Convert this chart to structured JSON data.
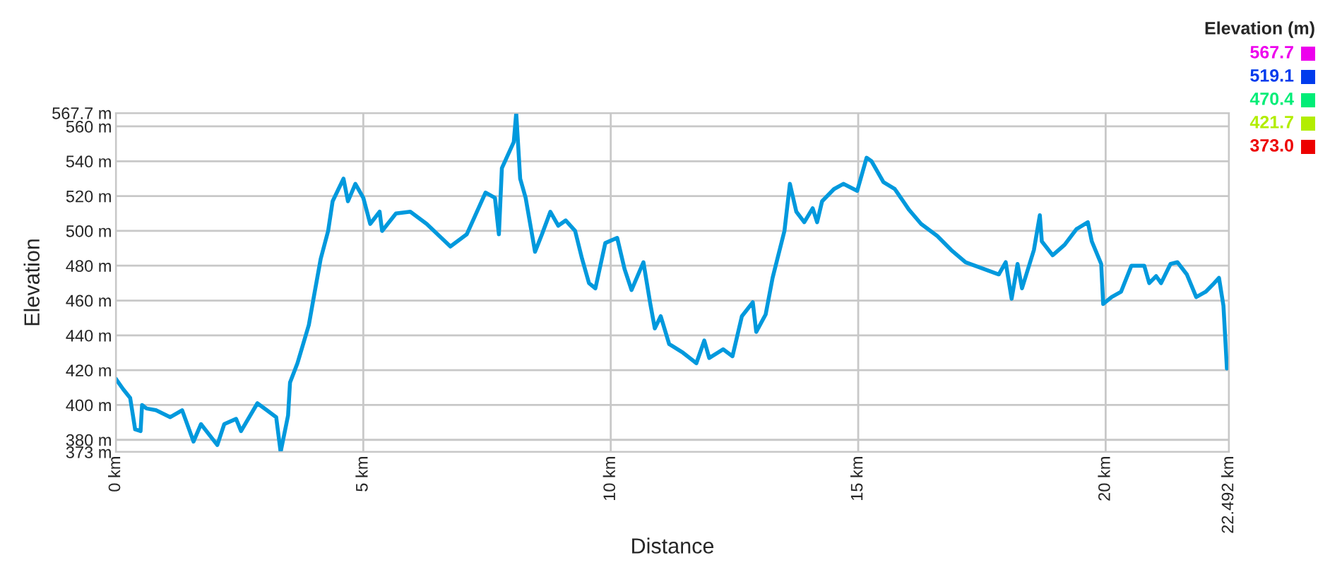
{
  "chart_data": {
    "type": "line",
    "xlabel": "Distance",
    "ylabel": "Elevation",
    "annotations": [
      "Elevation (m)",
      "567.7",
      "519.1",
      "470.4",
      "421.7",
      "373.0"
    ],
    "xlim": [
      0,
      22.492
    ],
    "xticks": [
      {
        "value": 0,
        "label": "0 km"
      },
      {
        "value": 5,
        "label": "5 km"
      },
      {
        "value": 10,
        "label": "10 km"
      },
      {
        "value": 15,
        "label": "15 km"
      },
      {
        "value": 20,
        "label": "20 km"
      },
      {
        "value": 22.492,
        "label": "22.492 km"
      }
    ],
    "ylim": [
      373,
      567.7
    ],
    "yticks": [
      {
        "value": 373,
        "label": "373 m"
      },
      {
        "value": 380,
        "label": "380 m"
      },
      {
        "value": 400,
        "label": "400 m"
      },
      {
        "value": 420,
        "label": "420 m"
      },
      {
        "value": 440,
        "label": "440 m"
      },
      {
        "value": 460,
        "label": "460 m"
      },
      {
        "value": 480,
        "label": "480 m"
      },
      {
        "value": 500,
        "label": "500 m"
      },
      {
        "value": 520,
        "label": "520 m"
      },
      {
        "value": 540,
        "label": "540 m"
      },
      {
        "value": 560,
        "label": "560 m"
      },
      {
        "value": 567.7,
        "label": "567.7 m"
      }
    ],
    "grid": true,
    "marker": "none",
    "line_style": "solid",
    "series": [
      {
        "color": "#0099dd",
        "x": [
          0,
          0.15,
          0.29,
          0.39,
          0.5,
          0.53,
          0.62,
          0.81,
          1.1,
          1.34,
          1.57,
          1.72,
          2.05,
          2.19,
          2.43,
          2.53,
          2.86,
          3.05,
          3.24,
          3.33,
          3.48,
          3.52,
          3.67,
          3.9,
          4.0,
          4.14,
          4.29,
          4.38,
          4.6,
          4.69,
          4.84,
          5.0,
          5.14,
          5.33,
          5.38,
          5.66,
          5.95,
          6.28,
          6.76,
          7.09,
          7.47,
          7.66,
          7.74,
          7.8,
          8.04,
          8.09,
          8.17,
          8.28,
          8.47,
          8.61,
          8.78,
          8.94,
          9.09,
          9.28,
          9.42,
          9.56,
          9.69,
          9.89,
          10.13,
          10.28,
          10.42,
          10.66,
          10.8,
          10.89,
          11.01,
          11.18,
          11.46,
          11.73,
          11.89,
          11.99,
          12.27,
          12.46,
          12.65,
          12.87,
          12.94,
          13.13,
          13.27,
          13.51,
          13.62,
          13.75,
          13.91,
          14.08,
          14.17,
          14.27,
          14.51,
          14.7,
          14.98,
          15.17,
          15.27,
          15.51,
          15.74,
          15.91,
          16.03,
          16.27,
          16.6,
          16.88,
          17.17,
          17.55,
          17.84,
          17.98,
          18.1,
          18.22,
          18.31,
          18.55,
          18.67,
          18.71,
          18.93,
          19.17,
          19.41,
          19.64,
          19.72,
          19.91,
          19.95,
          20.12,
          20.31,
          20.52,
          20.78,
          20.88,
          21.02,
          21.12,
          21.31,
          21.45,
          21.64,
          21.83,
          22.02,
          22.16,
          22.29,
          22.38,
          22.45,
          22.492
        ],
        "values": [
          415,
          409,
          404,
          386,
          385,
          400,
          398,
          397,
          393,
          397,
          379,
          389,
          377,
          389,
          392,
          385,
          401,
          397,
          393,
          373,
          394,
          413,
          424,
          446,
          462,
          484,
          500,
          517,
          530,
          517,
          527,
          519,
          504,
          511,
          500,
          510,
          511,
          504,
          491,
          498,
          522,
          519,
          498,
          536,
          551,
          567.7,
          530,
          519,
          488,
          498,
          511,
          503,
          506,
          500,
          484,
          470,
          467,
          493,
          496,
          478,
          466,
          482,
          458,
          444,
          451,
          435,
          430,
          424,
          437,
          427,
          432,
          428,
          451,
          459,
          442,
          452,
          473,
          500,
          527,
          511,
          505,
          513,
          505,
          517,
          524,
          527,
          523,
          542,
          540,
          528,
          524,
          517,
          512,
          504,
          497,
          489,
          482,
          478,
          475,
          482,
          461,
          481,
          467,
          489,
          509,
          494,
          486,
          492,
          501,
          505,
          494,
          481,
          458,
          462,
          465,
          480,
          480,
          470,
          474,
          470,
          481,
          482,
          475,
          462,
          465,
          469,
          473,
          457,
          421,
          421.7
        ]
      }
    ]
  }
}
